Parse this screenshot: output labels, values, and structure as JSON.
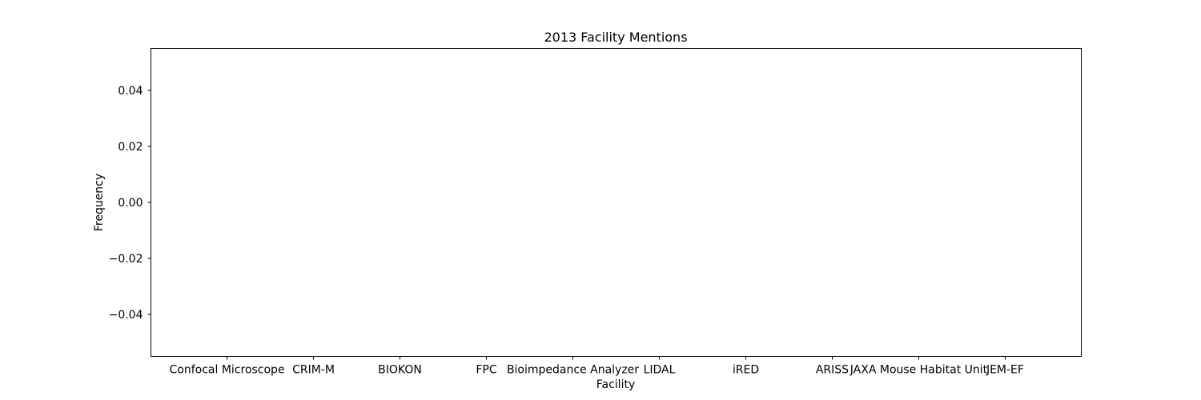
{
  "chart_data": {
    "type": "bar",
    "title": "2013 Facility Mentions",
    "xlabel": "Facility",
    "ylabel": "Frequency",
    "categories": [
      "Confocal Microscope",
      "CRIM-M",
      "BIOKON",
      "FPC",
      "Bioimpedance Analyzer",
      "LIDAL",
      "iRED",
      "ARISS",
      "JAXA Mouse Habitat Unit",
      "JEM-EF"
    ],
    "values": [
      0,
      0,
      0,
      0,
      0,
      0,
      0,
      0,
      0,
      0
    ],
    "ylim": [
      -0.055,
      0.055
    ],
    "yticks": [
      -0.04,
      -0.02,
      0.0,
      0.02,
      0.04
    ],
    "ytick_labels": [
      "−0.04",
      "−0.02",
      "0.00",
      "0.02",
      "0.04"
    ],
    "grid": false,
    "colors": {
      "bar": "#1f77b4",
      "axes": "#000000"
    }
  }
}
